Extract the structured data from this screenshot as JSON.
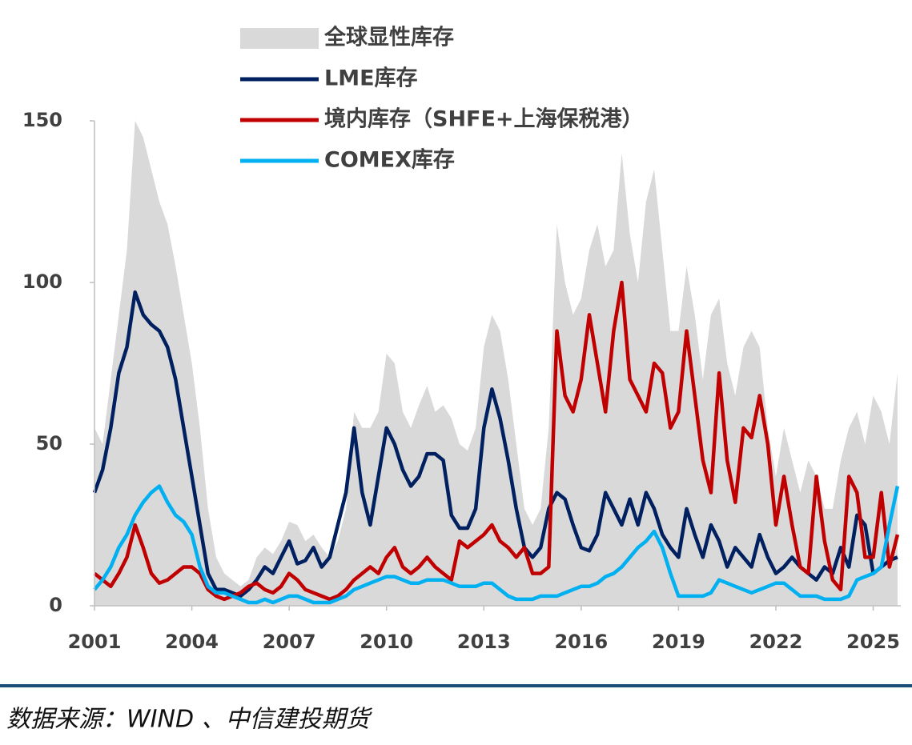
{
  "chart_data": {
    "type": "line",
    "source": "数据来源：WIND 、中信建投期货",
    "xlim": [
      2001,
      2025.85
    ],
    "xticks": [
      2001,
      2004,
      2007,
      2010,
      2013,
      2016,
      2019,
      2022,
      2025
    ],
    "ylim": [
      0,
      150
    ],
    "yticks": [
      0,
      50,
      100,
      150
    ],
    "x": [
      2001,
      2001.25,
      2001.5,
      2001.75,
      2002,
      2002.25,
      2002.5,
      2002.75,
      2003,
      2003.25,
      2003.5,
      2003.75,
      2004,
      2004.25,
      2004.5,
      2004.75,
      2005,
      2005.25,
      2005.5,
      2005.75,
      2006,
      2006.25,
      2006.5,
      2006.75,
      2007,
      2007.25,
      2007.5,
      2007.75,
      2008,
      2008.25,
      2008.5,
      2008.75,
      2009,
      2009.25,
      2009.5,
      2009.75,
      2010,
      2010.25,
      2010.5,
      2010.75,
      2011,
      2011.25,
      2011.5,
      2011.75,
      2012,
      2012.25,
      2012.5,
      2012.75,
      2013,
      2013.25,
      2013.5,
      2013.75,
      2014,
      2014.25,
      2014.5,
      2014.75,
      2015,
      2015.25,
      2015.5,
      2015.75,
      2016,
      2016.25,
      2016.5,
      2016.75,
      2017,
      2017.25,
      2017.5,
      2017.75,
      2018,
      2018.25,
      2018.5,
      2018.75,
      2019,
      2019.25,
      2019.5,
      2019.75,
      2020,
      2020.25,
      2020.5,
      2020.75,
      2021,
      2021.25,
      2021.5,
      2021.75,
      2022,
      2022.25,
      2022.5,
      2022.75,
      2023,
      2023.25,
      2023.5,
      2023.75,
      2024,
      2024.25,
      2024.5,
      2024.75,
      2025,
      2025.25,
      2025.5,
      2025.75
    ],
    "series": [
      {
        "name": "全球显性库存",
        "color": "#d9d9d9",
        "area": true,
        "values": [
          55,
          50,
          70,
          90,
          110,
          150,
          145,
          135,
          125,
          118,
          105,
          90,
          75,
          55,
          30,
          15,
          10,
          8,
          6,
          8,
          15,
          18,
          16,
          20,
          26,
          25,
          20,
          22,
          18,
          15,
          20,
          30,
          60,
          55,
          55,
          60,
          78,
          75,
          60,
          55,
          62,
          68,
          60,
          62,
          58,
          50,
          48,
          55,
          80,
          90,
          85,
          70,
          50,
          30,
          25,
          30,
          55,
          118,
          100,
          90,
          95,
          110,
          118,
          105,
          110,
          140,
          115,
          100,
          125,
          135,
          110,
          85,
          85,
          105,
          90,
          70,
          90,
          95,
          75,
          65,
          80,
          85,
          80,
          55,
          40,
          55,
          45,
          35,
          45,
          40,
          30,
          30,
          45,
          55,
          60,
          50,
          65,
          60,
          50,
          72
        ]
      },
      {
        "name": "LME库存",
        "color": "#002060",
        "values": [
          35,
          42,
          55,
          72,
          80,
          97,
          90,
          87,
          85,
          80,
          70,
          55,
          40,
          25,
          10,
          5,
          5,
          4,
          3,
          5,
          8,
          12,
          10,
          15,
          20,
          13,
          14,
          18,
          12,
          15,
          25,
          35,
          55,
          35,
          25,
          40,
          55,
          50,
          42,
          37,
          40,
          47,
          47,
          45,
          28,
          24,
          24,
          30,
          55,
          67,
          58,
          45,
          30,
          18,
          15,
          18,
          30,
          35,
          33,
          25,
          18,
          17,
          22,
          35,
          30,
          25,
          33,
          25,
          35,
          30,
          22,
          18,
          15,
          30,
          22,
          15,
          25,
          20,
          12,
          18,
          15,
          12,
          22,
          15,
          10,
          12,
          15,
          12,
          10,
          8,
          12,
          10,
          18,
          12,
          28,
          25,
          10,
          12,
          14,
          15
        ]
      },
      {
        "name": "境内库存（SHFE+上海保税港）",
        "color": "#c00000",
        "values": [
          10,
          8,
          6,
          10,
          15,
          25,
          18,
          10,
          7,
          8,
          10,
          12,
          12,
          10,
          5,
          3,
          2,
          3,
          4,
          6,
          7,
          5,
          4,
          6,
          10,
          8,
          5,
          4,
          3,
          2,
          3,
          5,
          8,
          10,
          12,
          10,
          15,
          18,
          12,
          10,
          12,
          15,
          12,
          10,
          8,
          20,
          18,
          20,
          22,
          25,
          20,
          18,
          15,
          18,
          10,
          10,
          12,
          85,
          65,
          60,
          70,
          90,
          75,
          60,
          85,
          100,
          70,
          65,
          60,
          75,
          72,
          55,
          60,
          85,
          65,
          45,
          35,
          72,
          45,
          32,
          55,
          52,
          65,
          50,
          25,
          40,
          25,
          12,
          10,
          40,
          20,
          8,
          5,
          40,
          35,
          15,
          15,
          35,
          12,
          22
        ]
      },
      {
        "name": "COMEX库存",
        "color": "#00b0f0",
        "values": [
          5,
          8,
          12,
          18,
          22,
          28,
          32,
          35,
          37,
          32,
          28,
          26,
          22,
          12,
          6,
          4,
          4,
          3,
          2,
          1,
          1,
          2,
          1,
          2,
          3,
          3,
          2,
          1,
          1,
          1,
          2,
          3,
          5,
          6,
          7,
          8,
          9,
          9,
          8,
          7,
          7,
          8,
          8,
          8,
          7,
          6,
          6,
          6,
          7,
          7,
          5,
          3,
          2,
          2,
          2,
          3,
          3,
          3,
          4,
          5,
          6,
          6,
          7,
          9,
          10,
          12,
          15,
          18,
          20,
          23,
          18,
          10,
          3,
          3,
          3,
          3,
          4,
          8,
          7,
          6,
          5,
          4,
          5,
          6,
          7,
          7,
          5,
          3,
          3,
          3,
          2,
          2,
          2,
          3,
          8,
          9,
          10,
          12,
          25,
          37
        ]
      }
    ]
  }
}
